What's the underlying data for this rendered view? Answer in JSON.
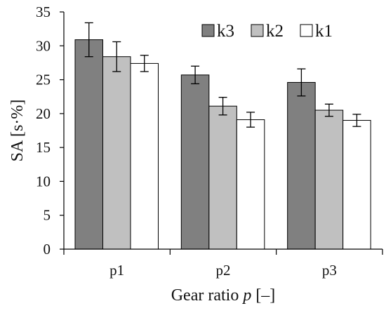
{
  "chart_data": {
    "type": "bar",
    "categories": [
      "p1",
      "p2",
      "p3"
    ],
    "series": [
      {
        "name": "k3",
        "color": "#808080",
        "values": [
          30.9,
          25.7,
          24.6
        ],
        "errors": [
          2.5,
          1.3,
          2.0
        ]
      },
      {
        "name": "k2",
        "color": "#c0c0c0",
        "values": [
          28.4,
          21.1,
          20.5
        ],
        "errors": [
          2.2,
          1.3,
          0.9
        ]
      },
      {
        "name": "k1",
        "color": "#ffffff",
        "values": [
          27.4,
          19.1,
          19.0
        ],
        "errors": [
          1.2,
          1.1,
          0.9
        ]
      }
    ],
    "ylabel": "SA [s·%]",
    "xlabel": {
      "prefix": "Gear ratio ",
      "symbol": "p",
      "suffix": " [–]"
    },
    "ylim": [
      0,
      35
    ],
    "yticks": [
      0,
      5,
      10,
      15,
      20,
      25,
      30,
      35
    ],
    "legend_position": "top-right",
    "grid": false,
    "error_bars": true
  }
}
